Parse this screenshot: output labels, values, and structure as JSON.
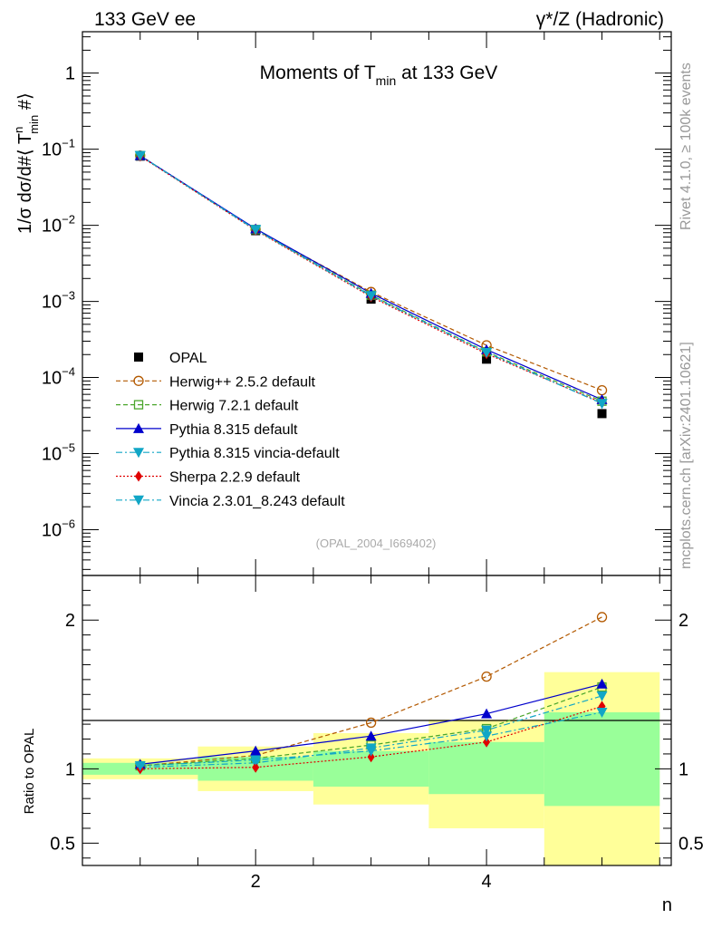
{
  "header": {
    "left": "133 GeV ee",
    "right": "γ*/Z (Hadronic)"
  },
  "side_labels": {
    "rivet": "Rivet 4.1.0, ≥ 100k events",
    "mcplots": "mcplots.cern.ch [arXiv:2401.10621]"
  },
  "chart_data": [
    {
      "type": "line",
      "title": "Moments of T_min at 133 GeV",
      "title_main": "Moments of T",
      "title_sub": "min",
      "title_tail": " at 133 GeV",
      "ylabel": "1/σ dσ/d#⟨T^n_min #⟩",
      "ylabel_parts": {
        "a": "1/σ  dσ/d#⟨ T",
        "sup": "n",
        "sub": "min",
        "b": " #⟩"
      },
      "xlabel": "",
      "yscale": "log",
      "ylim": [
        2.5e-07,
        3.5
      ],
      "xlim": [
        0.5,
        5.6
      ],
      "yticks": [
        {
          "value": 1,
          "label": "1"
        },
        {
          "value": 0.1,
          "label": "10",
          "exp": "−1"
        },
        {
          "value": 0.01,
          "label": "10",
          "exp": "−2"
        },
        {
          "value": 0.001,
          "label": "10",
          "exp": "−3"
        },
        {
          "value": 0.0001,
          "label": "10",
          "exp": "−4"
        },
        {
          "value": 1e-05,
          "label": "10",
          "exp": "−5"
        },
        {
          "value": 1e-06,
          "label": "10",
          "exp": "−6"
        }
      ],
      "watermark": "(OPAL_2004_I669402)",
      "legend_position": "bottom-left",
      "x": [
        1,
        2,
        3,
        4,
        5
      ],
      "series": [
        {
          "name": "OPAL",
          "color": "#000000",
          "marker": "square-filled",
          "line": "none",
          "values": [
            0.081,
            0.0085,
            0.00107,
            0.000174,
            3.35e-05
          ]
        },
        {
          "name": "Herwig++ 2.5.2 default",
          "color": "#b35900",
          "marker": "circle-open",
          "line": "dashed",
          "values": [
            0.0825,
            0.0088,
            0.00133,
            0.000265,
            6.8e-05
          ]
        },
        {
          "name": "Herwig 7.2.1 default",
          "color": "#4aa52b",
          "marker": "square-open",
          "line": "dashed",
          "values": [
            0.0825,
            0.0088,
            0.00121,
            0.000217,
            4.88e-05
          ]
        },
        {
          "name": "Pythia 8.315 default",
          "color": "#0000cc",
          "marker": "triangle-up",
          "line": "solid",
          "values": [
            0.0825,
            0.009,
            0.00128,
            0.000232,
            5.13e-05
          ]
        },
        {
          "name": "Pythia 8.315 vincia-default",
          "color": "#11a6c6",
          "marker": "triangle-down",
          "line": "dashdot",
          "values": [
            0.0822,
            0.0088,
            0.00119,
            0.000213,
            4.55e-05
          ]
        },
        {
          "name": "Sherpa 2.2.9 default",
          "color": "#e00000",
          "marker": "diamond",
          "line": "dotted",
          "values": [
            0.081,
            0.0086,
            0.00115,
            0.000205,
            4.65e-05
          ]
        },
        {
          "name": "Vincia 2.3.01_8.243 default",
          "color": "#11a6c6",
          "marker": "triangle-down",
          "line": "dashdot",
          "values": [
            0.0822,
            0.0087,
            0.00118,
            0.000213,
            4.55e-05
          ]
        }
      ]
    },
    {
      "type": "line",
      "title": "",
      "ylabel": "Ratio to OPAL",
      "xlabel": "n",
      "ylim": [
        0.35,
        2.3
      ],
      "xlim": [
        0.5,
        5.6
      ],
      "yticks": [
        {
          "value": 0.5,
          "label": "0.5"
        },
        {
          "value": 1,
          "label": "1"
        },
        {
          "value": 2,
          "label": "2"
        }
      ],
      "xticks": [
        {
          "value": 2,
          "label": "2"
        },
        {
          "value": 4,
          "label": "4"
        }
      ],
      "bins": [
        0.5,
        1.5,
        2.5,
        3.5,
        4.5,
        5.5
      ],
      "band_outer": [
        [
          0.93,
          1.07
        ],
        [
          0.85,
          1.15
        ],
        [
          0.76,
          1.24
        ],
        [
          0.6,
          1.33
        ],
        [
          0.35,
          1.65
        ]
      ],
      "band_inner": [
        [
          0.96,
          1.04
        ],
        [
          0.92,
          1.08
        ],
        [
          0.88,
          1.12
        ],
        [
          0.83,
          1.18
        ],
        [
          0.75,
          1.38
        ]
      ],
      "x": [
        1,
        2,
        3,
        4,
        5
      ],
      "series": [
        {
          "name": "Herwig++ 2.5.2 default",
          "values": [
            1.02,
            1.09,
            1.31,
            1.62,
            2.02
          ]
        },
        {
          "name": "Herwig 7.2.1 default",
          "values": [
            1.02,
            1.07,
            1.16,
            1.27,
            1.55
          ]
        },
        {
          "name": "Pythia 8.315 default",
          "values": [
            1.03,
            1.12,
            1.22,
            1.37,
            1.57
          ]
        },
        {
          "name": "Pythia 8.315 vincia-default",
          "values": [
            1.01,
            1.04,
            1.14,
            1.26,
            1.49
          ]
        },
        {
          "name": "Sherpa 2.2.9 default",
          "values": [
            1.0,
            1.01,
            1.08,
            1.18,
            1.42
          ]
        },
        {
          "name": "Vincia 2.3.01_8.243 default",
          "values": [
            1.02,
            1.06,
            1.12,
            1.22,
            1.38
          ]
        }
      ]
    }
  ]
}
